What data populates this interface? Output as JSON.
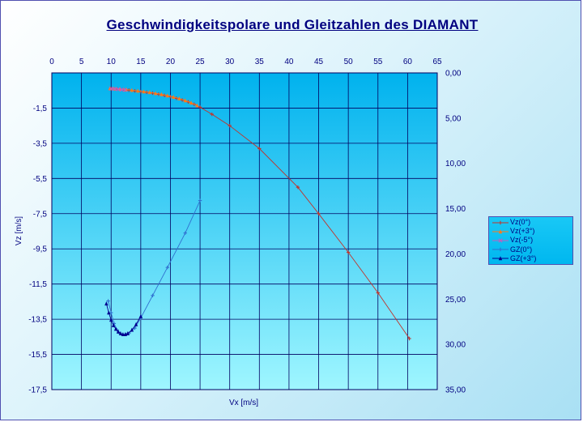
{
  "chart_data": {
    "type": "scatter",
    "title": "Geschwindigkeitspolare und Gleitzahlen des DIAMANT",
    "xlabel": "Vx [m/s]",
    "ylabel": "Vz [m/s]",
    "xlim": [
      0,
      65
    ],
    "ylim": [
      -17.5,
      0.5
    ],
    "y2lim": [
      0,
      35
    ],
    "x_ticks": [
      "0",
      "5",
      "10",
      "15",
      "20",
      "25",
      "30",
      "35",
      "40",
      "45",
      "50",
      "55",
      "60",
      "65"
    ],
    "y_ticks": [
      "-1,5",
      "-3,5",
      "-5,5",
      "-7,5",
      "-9,5",
      "-11,5",
      "-13,5",
      "-15,5",
      "-17,5"
    ],
    "y2_ticks": [
      "0,00",
      "5,00",
      "10,00",
      "15,00",
      "20,00",
      "25,00",
      "30,00",
      "35,00"
    ],
    "series": [
      {
        "name": "Vz(0°)",
        "axis": "y",
        "color": "#c0342c",
        "marker": "cross",
        "x": [
          10.0,
          11.0,
          12.0,
          13.0,
          14.0,
          15.0,
          16.0,
          17.0,
          18.0,
          19.0,
          20.0,
          21.0,
          22.0,
          23.0,
          24.0,
          25.0,
          27.0,
          30.0,
          35.0,
          41.5,
          45.0,
          50.0,
          55.0,
          60.3
        ],
        "y": [
          -0.4,
          -0.42,
          -0.45,
          -0.48,
          -0.52,
          -0.56,
          -0.6,
          -0.65,
          -0.71,
          -0.78,
          -0.85,
          -0.94,
          -1.04,
          -1.15,
          -1.28,
          -1.45,
          -1.85,
          -2.5,
          -3.8,
          -6.0,
          -7.5,
          -9.7,
          -12.0,
          -14.6
        ]
      },
      {
        "name": "Vz(+3°)",
        "axis": "y",
        "color": "#ff7a1a",
        "marker": "triangle",
        "x": [
          9.8,
          10.5,
          11.5,
          12.5,
          13.5,
          14.5,
          15.5,
          16.5,
          17.5,
          18.5,
          19.5,
          20.5,
          21.5,
          22.5,
          23.5,
          24.5
        ],
        "y": [
          -0.38,
          -0.4,
          -0.42,
          -0.45,
          -0.48,
          -0.52,
          -0.56,
          -0.6,
          -0.66,
          -0.72,
          -0.79,
          -0.87,
          -0.96,
          -1.07,
          -1.2,
          -1.35
        ]
      },
      {
        "name": "Vz(-5°)",
        "axis": "y",
        "color": "#c060c0",
        "marker": "x",
        "x": [
          10.0,
          10.6,
          11.2,
          11.8,
          12.4
        ],
        "y": [
          -0.4,
          -0.41,
          -0.43,
          -0.45,
          -0.47
        ]
      },
      {
        "name": "GZ(0°)",
        "axis": "y2",
        "color": "#3070d0",
        "marker": "cross",
        "x": [
          9.5,
          10.0,
          10.5,
          11.0,
          11.5,
          12.0,
          12.5,
          13.0,
          14.0,
          15.0,
          17.0,
          19.5,
          22.5,
          25.0
        ],
        "y": [
          25.2,
          26.5,
          27.7,
          28.4,
          28.8,
          28.9,
          28.9,
          28.8,
          28.2,
          27.1,
          24.6,
          21.5,
          17.7,
          14.1
        ]
      },
      {
        "name": "GZ(+3°)",
        "axis": "y2",
        "color": "#000090",
        "marker": "triangle",
        "x": [
          9.2,
          9.6,
          10.0,
          10.4,
          10.8,
          11.2,
          11.6,
          12.0,
          12.4,
          12.8,
          13.5,
          14.2,
          15.0
        ],
        "y": [
          25.5,
          26.5,
          27.3,
          27.9,
          28.3,
          28.6,
          28.8,
          28.9,
          28.9,
          28.8,
          28.4,
          27.8,
          26.9
        ]
      }
    ]
  }
}
